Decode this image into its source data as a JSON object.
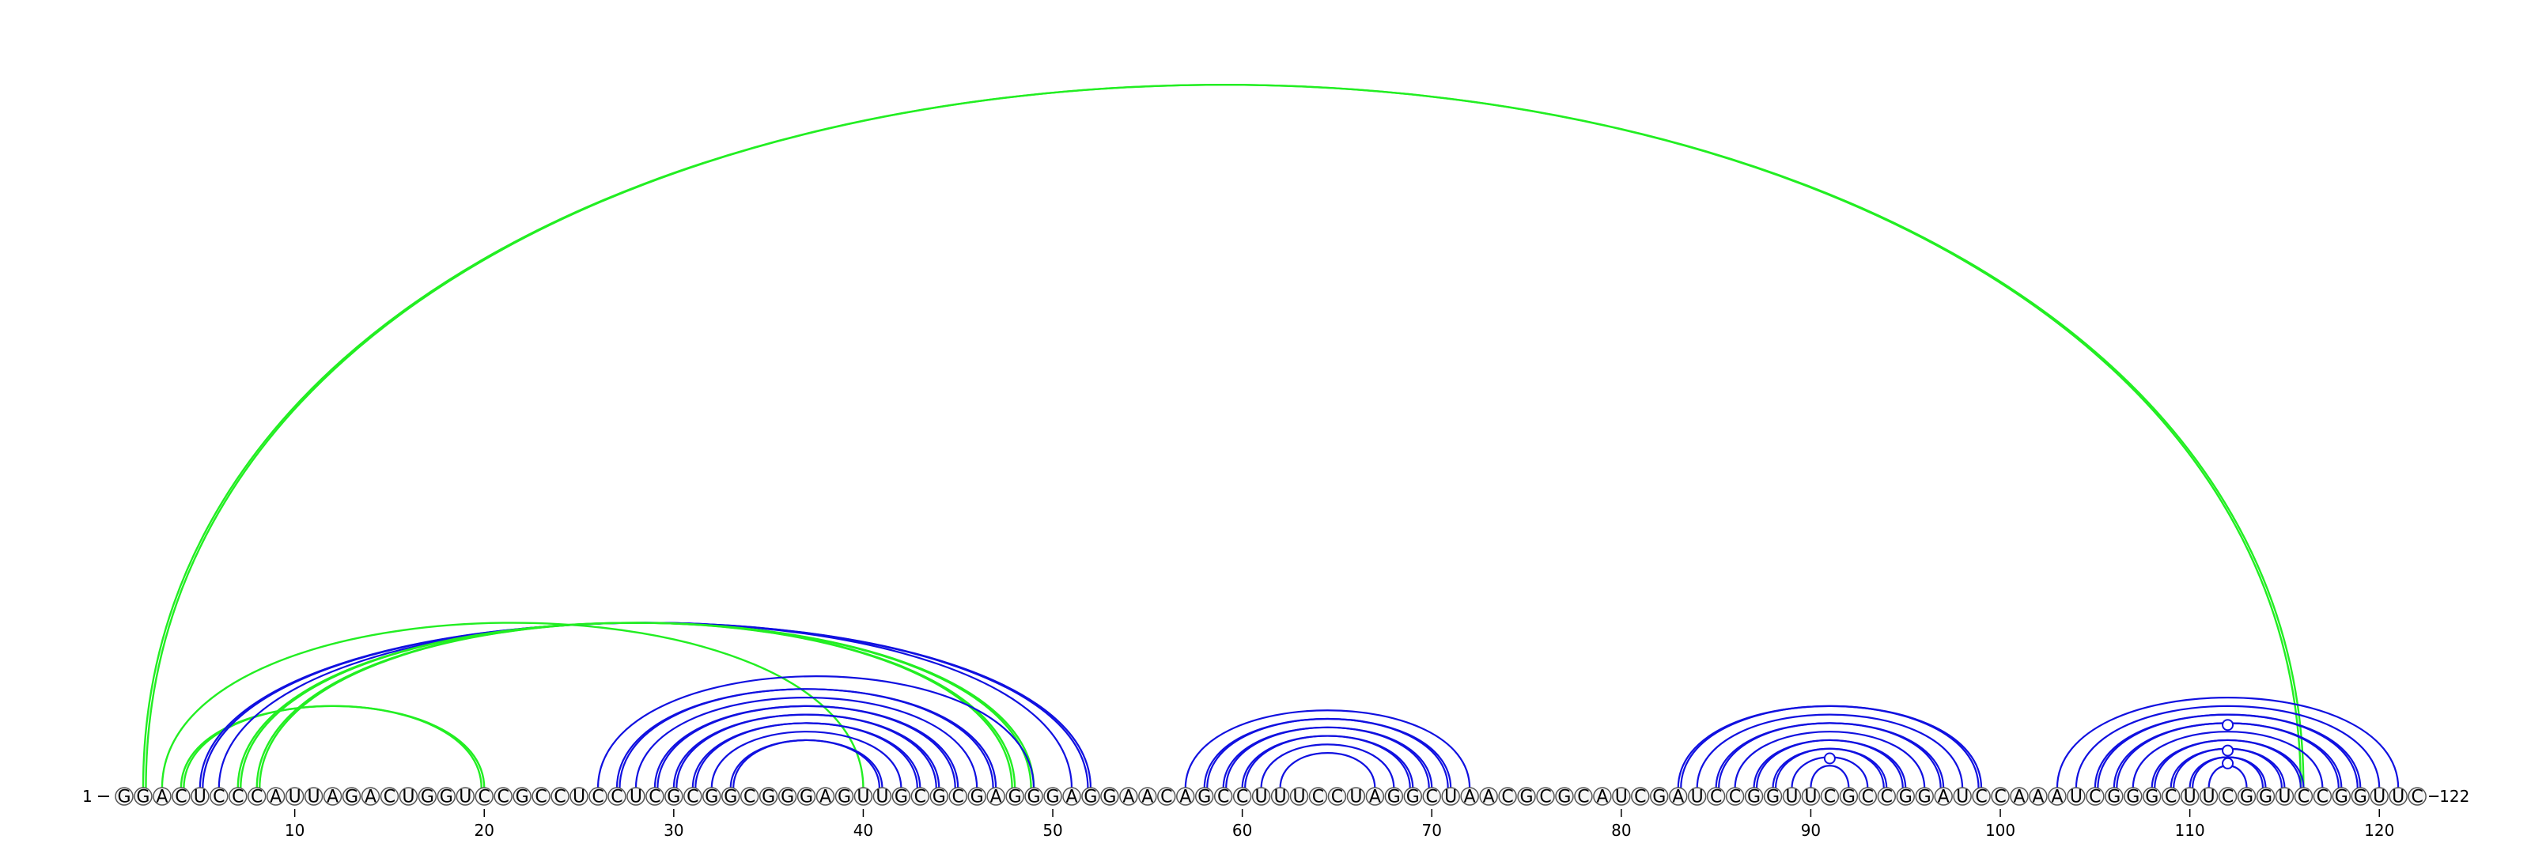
{
  "sequence": "GGACUCCCAUUAGACUGGUCCGCCUCCUCGCGGCGGGAGUUGCGCGAGGGAGGAACAGCCUUUCCUAGGCUAACGCGCAUCGAUCCGGUUCGCCGGAUCCAAAUCGGGCUUCGGUCCGGUUC",
  "start_label": "1",
  "end_label": "122",
  "tick_labels": [
    "10",
    "20",
    "30",
    "40",
    "50",
    "60",
    "70",
    "80",
    "90",
    "100",
    "110",
    "120"
  ],
  "colors": {
    "blue": "#1010e0",
    "green": "#22ee22",
    "circle_stroke": "#555555",
    "circle_fill": "#f6f6f6"
  },
  "arcs": [
    {
      "i": 2,
      "j": 116,
      "color": "green",
      "double": true
    },
    {
      "i": 3,
      "j": 40,
      "color": "green",
      "double": false
    },
    {
      "i": 4,
      "j": 20,
      "color": "green",
      "double": true
    },
    {
      "i": 5,
      "j": 52,
      "color": "blue",
      "double": true
    },
    {
      "i": 6,
      "j": 51,
      "color": "blue",
      "double": false
    },
    {
      "i": 7,
      "j": 49,
      "color": "green",
      "double": true
    },
    {
      "i": 8,
      "j": 48,
      "color": "green",
      "double": true
    },
    {
      "i": 26,
      "j": 49,
      "color": "blue",
      "double": false
    },
    {
      "i": 27,
      "j": 47,
      "color": "blue",
      "double": true
    },
    {
      "i": 28,
      "j": 46,
      "color": "blue",
      "double": false
    },
    {
      "i": 29,
      "j": 45,
      "color": "blue",
      "double": true
    },
    {
      "i": 30,
      "j": 44,
      "color": "blue",
      "double": true
    },
    {
      "i": 31,
      "j": 43,
      "color": "blue",
      "double": true
    },
    {
      "i": 32,
      "j": 42,
      "color": "blue",
      "double": false
    },
    {
      "i": 33,
      "j": 41,
      "color": "blue",
      "double": true
    },
    {
      "i": 57,
      "j": 72,
      "color": "blue",
      "double": false
    },
    {
      "i": 58,
      "j": 71,
      "color": "blue",
      "double": true
    },
    {
      "i": 59,
      "j": 70,
      "color": "blue",
      "double": true
    },
    {
      "i": 60,
      "j": 69,
      "color": "blue",
      "double": true
    },
    {
      "i": 61,
      "j": 68,
      "color": "blue",
      "double": false
    },
    {
      "i": 62,
      "j": 67,
      "color": "blue",
      "double": false
    },
    {
      "i": 83,
      "j": 99,
      "color": "blue",
      "double": true
    },
    {
      "i": 84,
      "j": 98,
      "color": "blue",
      "double": false
    },
    {
      "i": 85,
      "j": 97,
      "color": "blue",
      "double": true
    },
    {
      "i": 86,
      "j": 96,
      "color": "blue",
      "double": false
    },
    {
      "i": 87,
      "j": 95,
      "color": "blue",
      "double": true
    },
    {
      "i": 88,
      "j": 94,
      "color": "blue",
      "double": true
    },
    {
      "i": 89,
      "j": 93,
      "color": "blue",
      "double": false
    },
    {
      "i": 90,
      "j": 92,
      "color": "blue",
      "double": false
    },
    {
      "i": 103,
      "j": 121,
      "color": "blue",
      "double": false
    },
    {
      "i": 104,
      "j": 120,
      "color": "blue",
      "double": false
    },
    {
      "i": 105,
      "j": 119,
      "color": "blue",
      "double": true
    },
    {
      "i": 106,
      "j": 118,
      "color": "blue",
      "double": true
    },
    {
      "i": 107,
      "j": 117,
      "color": "blue",
      "double": false
    },
    {
      "i": 108,
      "j": 116,
      "color": "blue",
      "double": true
    },
    {
      "i": 109,
      "j": 115,
      "color": "blue",
      "double": true
    },
    {
      "i": 110,
      "j": 114,
      "color": "blue",
      "double": true
    },
    {
      "i": 111,
      "j": 113,
      "color": "blue",
      "double": false
    }
  ],
  "markers": [
    {
      "i": 91,
      "j": 91
    },
    {
      "i": 104,
      "j": 120
    },
    {
      "i": 108,
      "j": 116
    },
    {
      "i": 110,
      "j": 114
    }
  ]
}
